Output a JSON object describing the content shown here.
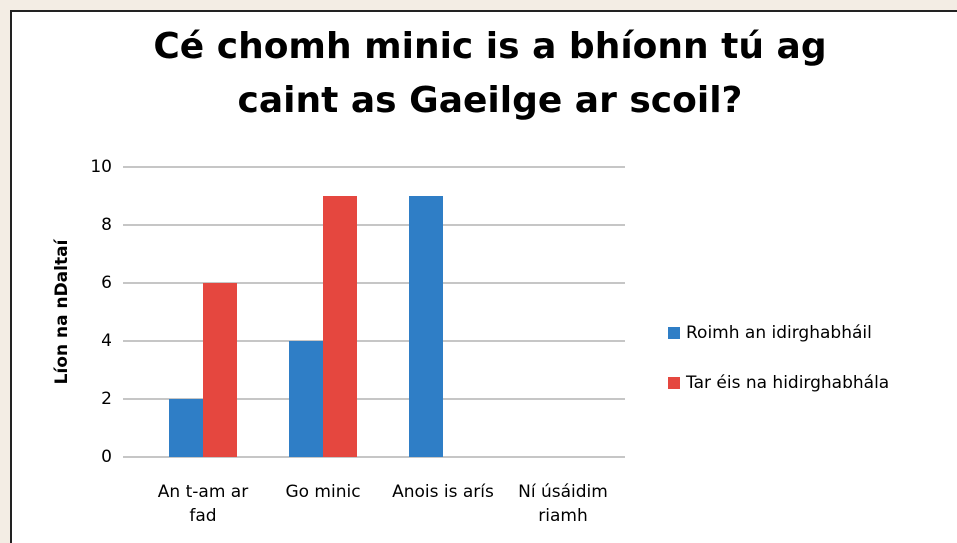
{
  "chart_data": {
    "type": "bar",
    "title": "Cé chomh minic is a bhíonn tú ag caint as Gaeilge ar scoil?",
    "y_label": "Líon na nDaltaí",
    "categories": [
      "An t-am ar fad",
      "Go minic",
      "Anois is arís",
      "Ní úsáidim riamh"
    ],
    "series": [
      {
        "name": "Roimh an idirghabháil",
        "color": "#2f7ec6",
        "values": [
          2,
          4,
          9,
          0
        ]
      },
      {
        "name": "Tar éis na hidirghabhála",
        "color": "#e5473f",
        "values": [
          6,
          9,
          0,
          0
        ]
      }
    ],
    "ylim": [
      0,
      10
    ],
    "yticks": [
      0,
      2,
      4,
      6,
      8,
      10
    ],
    "grid": true,
    "legend": "right"
  }
}
